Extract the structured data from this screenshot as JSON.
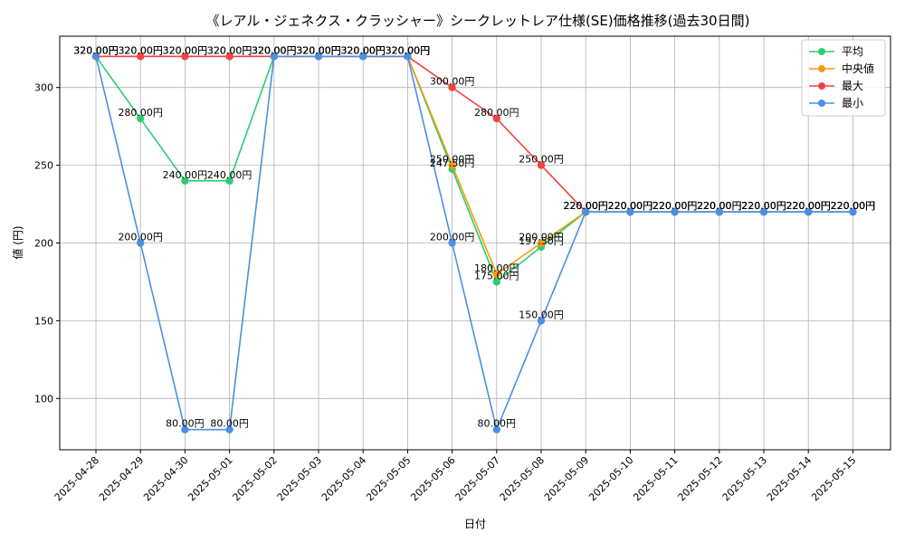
{
  "chart_data": {
    "type": "line",
    "title": "《レアル・ジェネクス・クラッシャー》シークレットレア仕様(SE)価格推移(過去30日間)",
    "xlabel": "日付",
    "ylabel": "値 (円)",
    "ylim": [
      67,
      333
    ],
    "yticks": [
      100,
      150,
      200,
      250,
      300
    ],
    "grid": true,
    "legend_position": "top-right",
    "categories": [
      "2025-04-28",
      "2025-04-29",
      "2025-04-30",
      "2025-05-01",
      "2025-05-02",
      "2025-05-03",
      "2025-05-04",
      "2025-05-05",
      "2025-05-06",
      "2025-05-07",
      "2025-05-08",
      "2025-05-09",
      "2025-05-10",
      "2025-05-11",
      "2025-05-12",
      "2025-05-13",
      "2025-05-14",
      "2025-05-15"
    ],
    "series": [
      {
        "name": "平均",
        "color": "#2ecc71",
        "values": [
          320,
          280,
          240,
          240,
          320,
          320,
          320,
          320,
          247.5,
          175,
          197.5,
          220,
          220,
          220,
          220,
          220,
          220,
          220
        ],
        "labels": [
          "320.00円",
          "280.00円",
          "240.00円",
          "240.00円",
          "320.00円",
          "320.00円",
          "320.00円",
          "320.00円",
          "247.50円",
          "175.00円",
          "197.50円",
          "220.00円",
          "220.00円",
          "220.00円",
          "220.00円",
          "220.00円",
          "220.00円",
          "220.00円"
        ]
      },
      {
        "name": "中央値",
        "color": "#f39c12",
        "values": [
          320,
          320,
          320,
          320,
          320,
          320,
          320,
          320,
          250,
          180,
          200,
          220,
          220,
          220,
          220,
          220,
          220,
          220
        ],
        "labels": [
          "320.00円",
          "320.00円",
          "320.00円",
          "320.00円",
          "320.00円",
          "320.00円",
          "320.00円",
          "320.00円",
          "250.00円",
          "180.00円",
          "200.00円",
          "220.00円",
          "220.00円",
          "220.00円",
          "220.00円",
          "220.00円",
          "220.00円",
          "220.00円"
        ]
      },
      {
        "name": "最大",
        "color": "#ef4444",
        "values": [
          320,
          320,
          320,
          320,
          320,
          320,
          320,
          320,
          300,
          280,
          250,
          220,
          220,
          220,
          220,
          220,
          220,
          220
        ],
        "labels": [
          "320.00円",
          "320.00円",
          "320.00円",
          "320.00円",
          "320.00円",
          "320.00円",
          "320.00円",
          "320.00円",
          "300.00円",
          "280.00円",
          "250.00円",
          "220.00円",
          "220.00円",
          "220.00円",
          "220.00円",
          "220.00円",
          "220.00円",
          "220.00円"
        ]
      },
      {
        "name": "最小",
        "color": "#4a90e2",
        "values": [
          320,
          200,
          80,
          80,
          320,
          320,
          320,
          320,
          200,
          80,
          150,
          220,
          220,
          220,
          220,
          220,
          220,
          220
        ],
        "labels": [
          "320.00円",
          "200.00円",
          "80.00円",
          "80.00円",
          "320.00円",
          "320.00円",
          "320.00円",
          "320.00円",
          "200.00円",
          "80.00円",
          "150.00円",
          "220.00円",
          "220.00円",
          "220.00円",
          "220.00円",
          "220.00円",
          "220.00円",
          "220.00円"
        ]
      }
    ]
  }
}
